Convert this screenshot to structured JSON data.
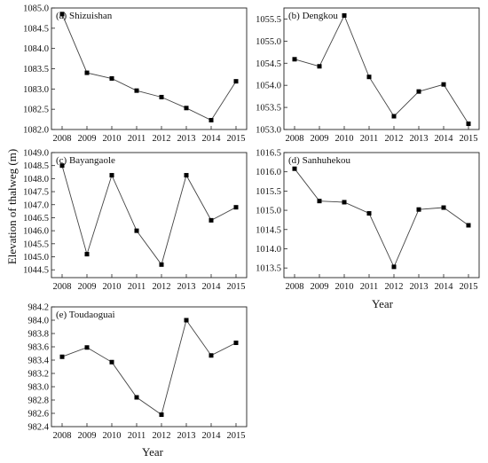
{
  "figure": {
    "ylabel": "Elevation of thalweg (m)",
    "xlabel_right": "Year",
    "xlabel_bottom": "Year",
    "line_color": "#444444",
    "marker_color": "#000000"
  },
  "chart_data": [
    {
      "type": "line",
      "title": "(a) Shizuishan",
      "x": [
        "2008",
        "2009",
        "2010",
        "2011",
        "2012",
        "2013",
        "2014",
        "2015"
      ],
      "series": [
        {
          "values": [
            1084.85,
            1083.4,
            1083.26,
            1082.96,
            1082.8,
            1082.53,
            1082.23,
            1083.19
          ]
        }
      ],
      "ylim": [
        1082.0,
        1085.0
      ],
      "yticks": [
        "1082.0",
        "1082.5",
        "1083.0",
        "1083.5",
        "1084.0",
        "1084.5",
        "1085.0"
      ],
      "grid": false,
      "marker": "square"
    },
    {
      "type": "line",
      "title": "(b) Dengkou",
      "x": [
        "2008",
        "2009",
        "2010",
        "2011",
        "2012",
        "2013",
        "2014",
        "2015"
      ],
      "series": [
        {
          "values": [
            1054.59,
            1054.43,
            1055.58,
            1054.19,
            1053.3,
            1053.86,
            1054.02,
            1053.13
          ]
        }
      ],
      "ylim": [
        1053.0,
        1055.75
      ],
      "yticks": [
        "1053.0",
        "1053.5",
        "1054.0",
        "1054.5",
        "1055.0",
        "1055.5"
      ],
      "grid": false,
      "marker": "square"
    },
    {
      "type": "line",
      "title": "(c) Bayangaole",
      "x": [
        "2008",
        "2009",
        "2010",
        "2011",
        "2012",
        "2013",
        "2014",
        "2015"
      ],
      "series": [
        {
          "values": [
            1048.5,
            1045.1,
            1048.13,
            1046.0,
            1044.7,
            1048.13,
            1046.4,
            1046.9
          ]
        }
      ],
      "ylim": [
        1044.2,
        1049.0
      ],
      "yticks": [
        "1044.5",
        "1045.0",
        "1045.5",
        "1046.0",
        "1046.5",
        "1047.0",
        "1047.5",
        "1048.0",
        "1048.5",
        "1049.0"
      ],
      "grid": false,
      "marker": "square"
    },
    {
      "type": "line",
      "title": "(d) Sanhuhekou",
      "x": [
        "2008",
        "2009",
        "2010",
        "2011",
        "2012",
        "2013",
        "2014",
        "2015"
      ],
      "series": [
        {
          "values": [
            1016.08,
            1015.24,
            1015.21,
            1014.92,
            1013.53,
            1015.02,
            1015.07,
            1014.61
          ]
        }
      ],
      "ylim": [
        1013.25,
        1016.5
      ],
      "yticks": [
        "1013.5",
        "1014.0",
        "1014.5",
        "1015.0",
        "1015.5",
        "1016.0",
        "1016.5"
      ],
      "grid": false,
      "marker": "square"
    },
    {
      "type": "line",
      "title": "(e) Toudaoguai",
      "x": [
        "2008",
        "2009",
        "2010",
        "2011",
        "2012",
        "2013",
        "2014",
        "2015"
      ],
      "series": [
        {
          "values": [
            983.45,
            983.59,
            983.37,
            982.84,
            982.58,
            984.0,
            983.47,
            983.66
          ]
        }
      ],
      "ylim": [
        982.4,
        984.2
      ],
      "yticks": [
        "982.4",
        "982.6",
        "982.8",
        "983.0",
        "983.2",
        "983.4",
        "983.6",
        "983.8",
        "984.0",
        "984.2"
      ],
      "grid": false,
      "marker": "square"
    }
  ]
}
